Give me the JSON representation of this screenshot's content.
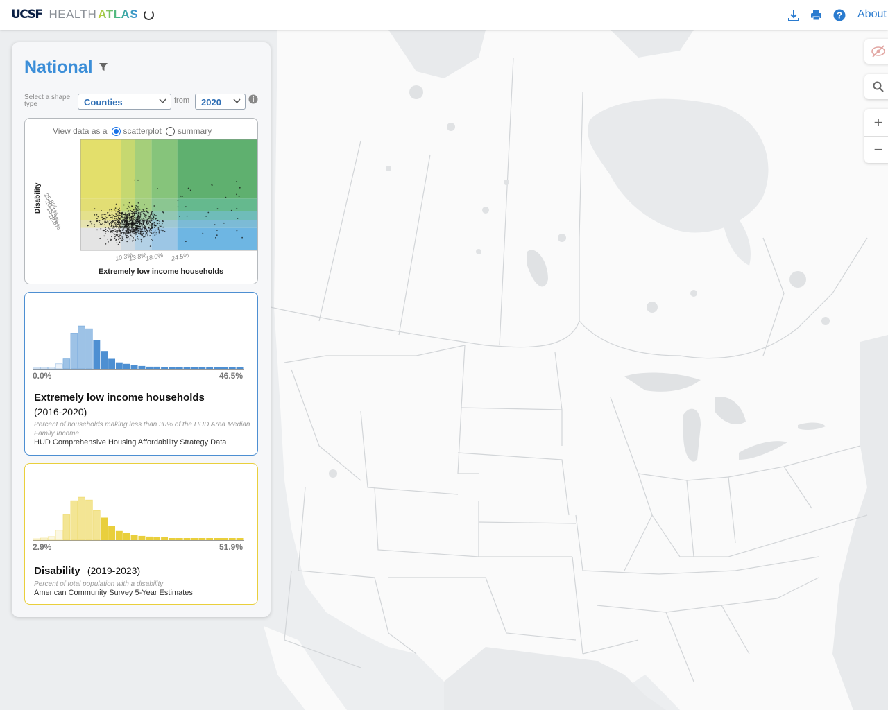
{
  "header": {
    "logo_ucsf": "UCSF",
    "logo_health": "HEALTH",
    "logo_atlas": "ATLAS",
    "about_label": "About",
    "icons": [
      "download-icon",
      "print-icon",
      "help-icon"
    ]
  },
  "panel": {
    "region_title": "National",
    "shape_label": "Select a shape type",
    "shape_value": "Counties",
    "from_label": "from",
    "year_value": "2020",
    "view_as_label": "View data as a",
    "radio_scatter": "scatterplot",
    "radio_summary": "summary"
  },
  "scatter": {
    "y_label": "Disability",
    "x_label": "Extremely low income households",
    "x_ticks": [
      "10.3%",
      "13.8%",
      "18.0%",
      "24.5%"
    ],
    "y_ticks": [
      "25.8%",
      "20.1%",
      "16.3%",
      "12.8%"
    ]
  },
  "elih": {
    "title": "Extremely low income households",
    "years": "(2016-2020)",
    "description": "Percent of households making less than 30% of the HUD Area Median Family Income",
    "source": "HUD Comprehensive Housing Affordability Strategy Data",
    "min_label": "0.0%",
    "max_label": "46.5%",
    "color": "#4d8fd2"
  },
  "disability": {
    "title": "Disability",
    "years": "(2019-2023)",
    "description": "Percent of total population with a disability",
    "source": "American Community Survey 5-Year Estimates",
    "min_label": "2.9%",
    "max_label": "51.9%",
    "color": "#e9cf3c"
  },
  "chart_data": [
    {
      "type": "scatter",
      "xlabel": "Extremely low income households",
      "ylabel": "Disability",
      "x_ticks": [
        10.3,
        13.8,
        18.0,
        24.5
      ],
      "y_ticks": [
        12.8,
        16.3,
        20.1,
        25.8
      ],
      "xlim": [
        0,
        46.5
      ],
      "ylim": [
        2.9,
        51.9
      ],
      "note": ""
    },
    {
      "type": "bar",
      "xlabel": "Extremely low income households",
      "xlim": [
        0.0,
        46.5
      ],
      "values": [
        1,
        1,
        2,
        7,
        14,
        50,
        60,
        56,
        40,
        25,
        14,
        9,
        7,
        5,
        4,
        3,
        3,
        2,
        2,
        2,
        2,
        2,
        2,
        2,
        2,
        2,
        2,
        2
      ]
    },
    {
      "type": "bar",
      "xlabel": "Disability",
      "xlim": [
        2.9,
        51.9
      ],
      "values": [
        2,
        3,
        5,
        14,
        36,
        56,
        61,
        57,
        42,
        32,
        20,
        13,
        10,
        7,
        6,
        5,
        4,
        4,
        3,
        3,
        3,
        3,
        3,
        3,
        3,
        3,
        3,
        3
      ]
    }
  ]
}
